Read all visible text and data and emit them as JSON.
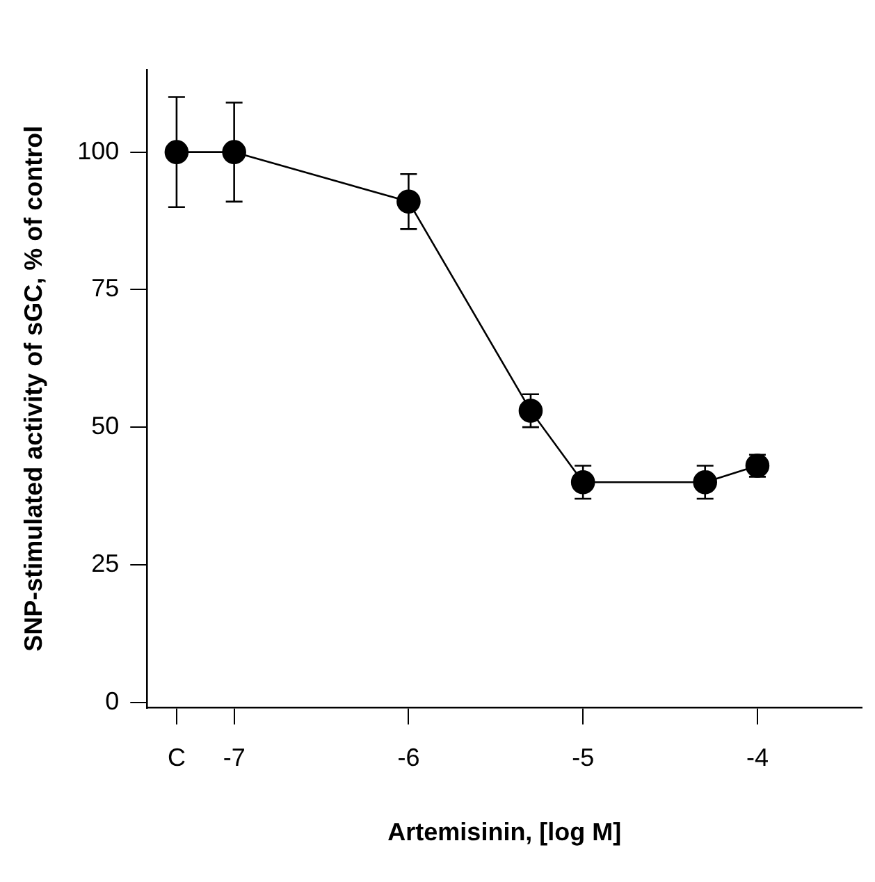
{
  "chart_data": {
    "type": "line",
    "xlabel": "Artemisinin, [log M]",
    "ylabel": "SNP-stimulated activity of sGC, % of control",
    "x": [
      -7.33,
      -7,
      -6,
      -5.3,
      -5,
      -4.3,
      -4
    ],
    "series": [
      {
        "color": "#000000",
        "values": [
          100,
          100,
          91,
          53,
          40,
          40,
          43
        ],
        "errors": [
          10,
          9,
          5,
          3,
          3,
          3,
          2
        ]
      }
    ],
    "xlim": [
      -7.5,
      -3.4
    ],
    "xticks": [
      {
        "value": -7.33,
        "label": "C"
      },
      -7,
      -6,
      -5,
      -4
    ],
    "ylim": [
      -1,
      115
    ],
    "yticks": [
      0,
      25,
      50,
      75,
      100
    ],
    "marker": "circle",
    "line_style": "solid",
    "grid": false,
    "legend": false
  }
}
